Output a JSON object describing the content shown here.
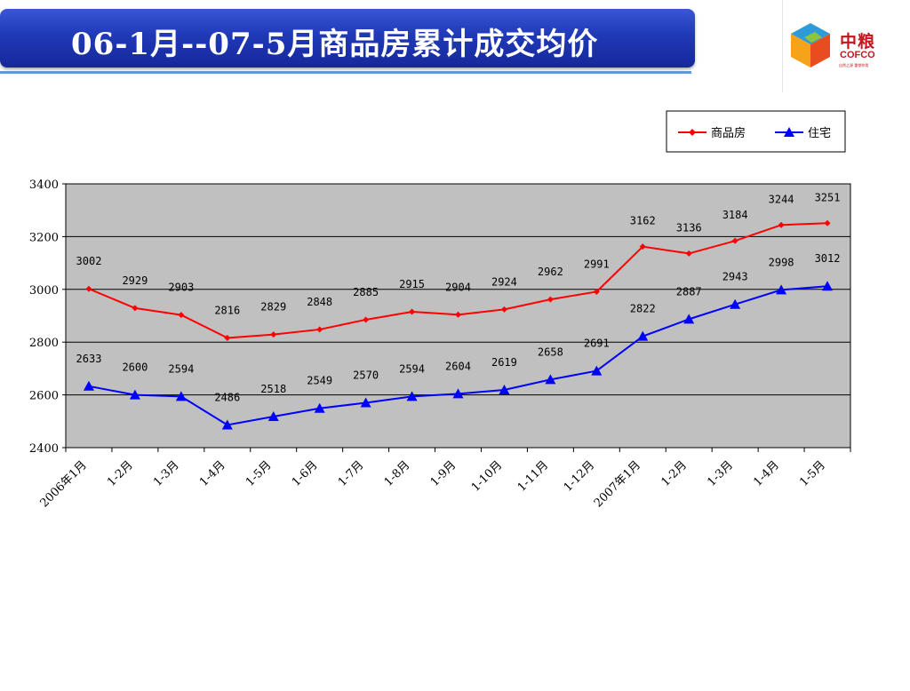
{
  "slide": {
    "title": "06-1月--07-5月商品房累计成交均价"
  },
  "logo": {
    "name_cn": "中粮",
    "name_en": "COFCO",
    "slogan": "自然之源 重塑你我",
    "icon": "cofco-cube-icon"
  },
  "chart_data": {
    "type": "line",
    "categories": [
      "2006年1月",
      "1-2月",
      "1-3月",
      "1-4月",
      "1-5月",
      "1-6月",
      "1-7月",
      "1-8月",
      "1-9月",
      "1-10月",
      "1-11月",
      "1-12月",
      "2007年1月",
      "1-2月",
      "1-3月",
      "1-4月",
      "1-5月"
    ],
    "series": [
      {
        "name": "商品房",
        "color": "#ff0000",
        "marker": "diamond",
        "values": [
          3002,
          2929,
          2903,
          2816,
          2829,
          2848,
          2885,
          2915,
          2904,
          2924,
          2962,
          2991,
          3162,
          3136,
          3184,
          3244,
          3251
        ]
      },
      {
        "name": "住宅",
        "color": "#0000ff",
        "marker": "triangle",
        "values": [
          2633,
          2600,
          2594,
          2486,
          2518,
          2549,
          2570,
          2594,
          2604,
          2619,
          2658,
          2691,
          2822,
          2887,
          2943,
          2998,
          3012
        ]
      }
    ],
    "ylim": [
      2400,
      3400
    ],
    "yticks": [
      2400,
      2600,
      2800,
      3000,
      3200,
      3400
    ],
    "grid": true,
    "plot_background": "#c0c0c0",
    "legend_position": "top-right"
  }
}
